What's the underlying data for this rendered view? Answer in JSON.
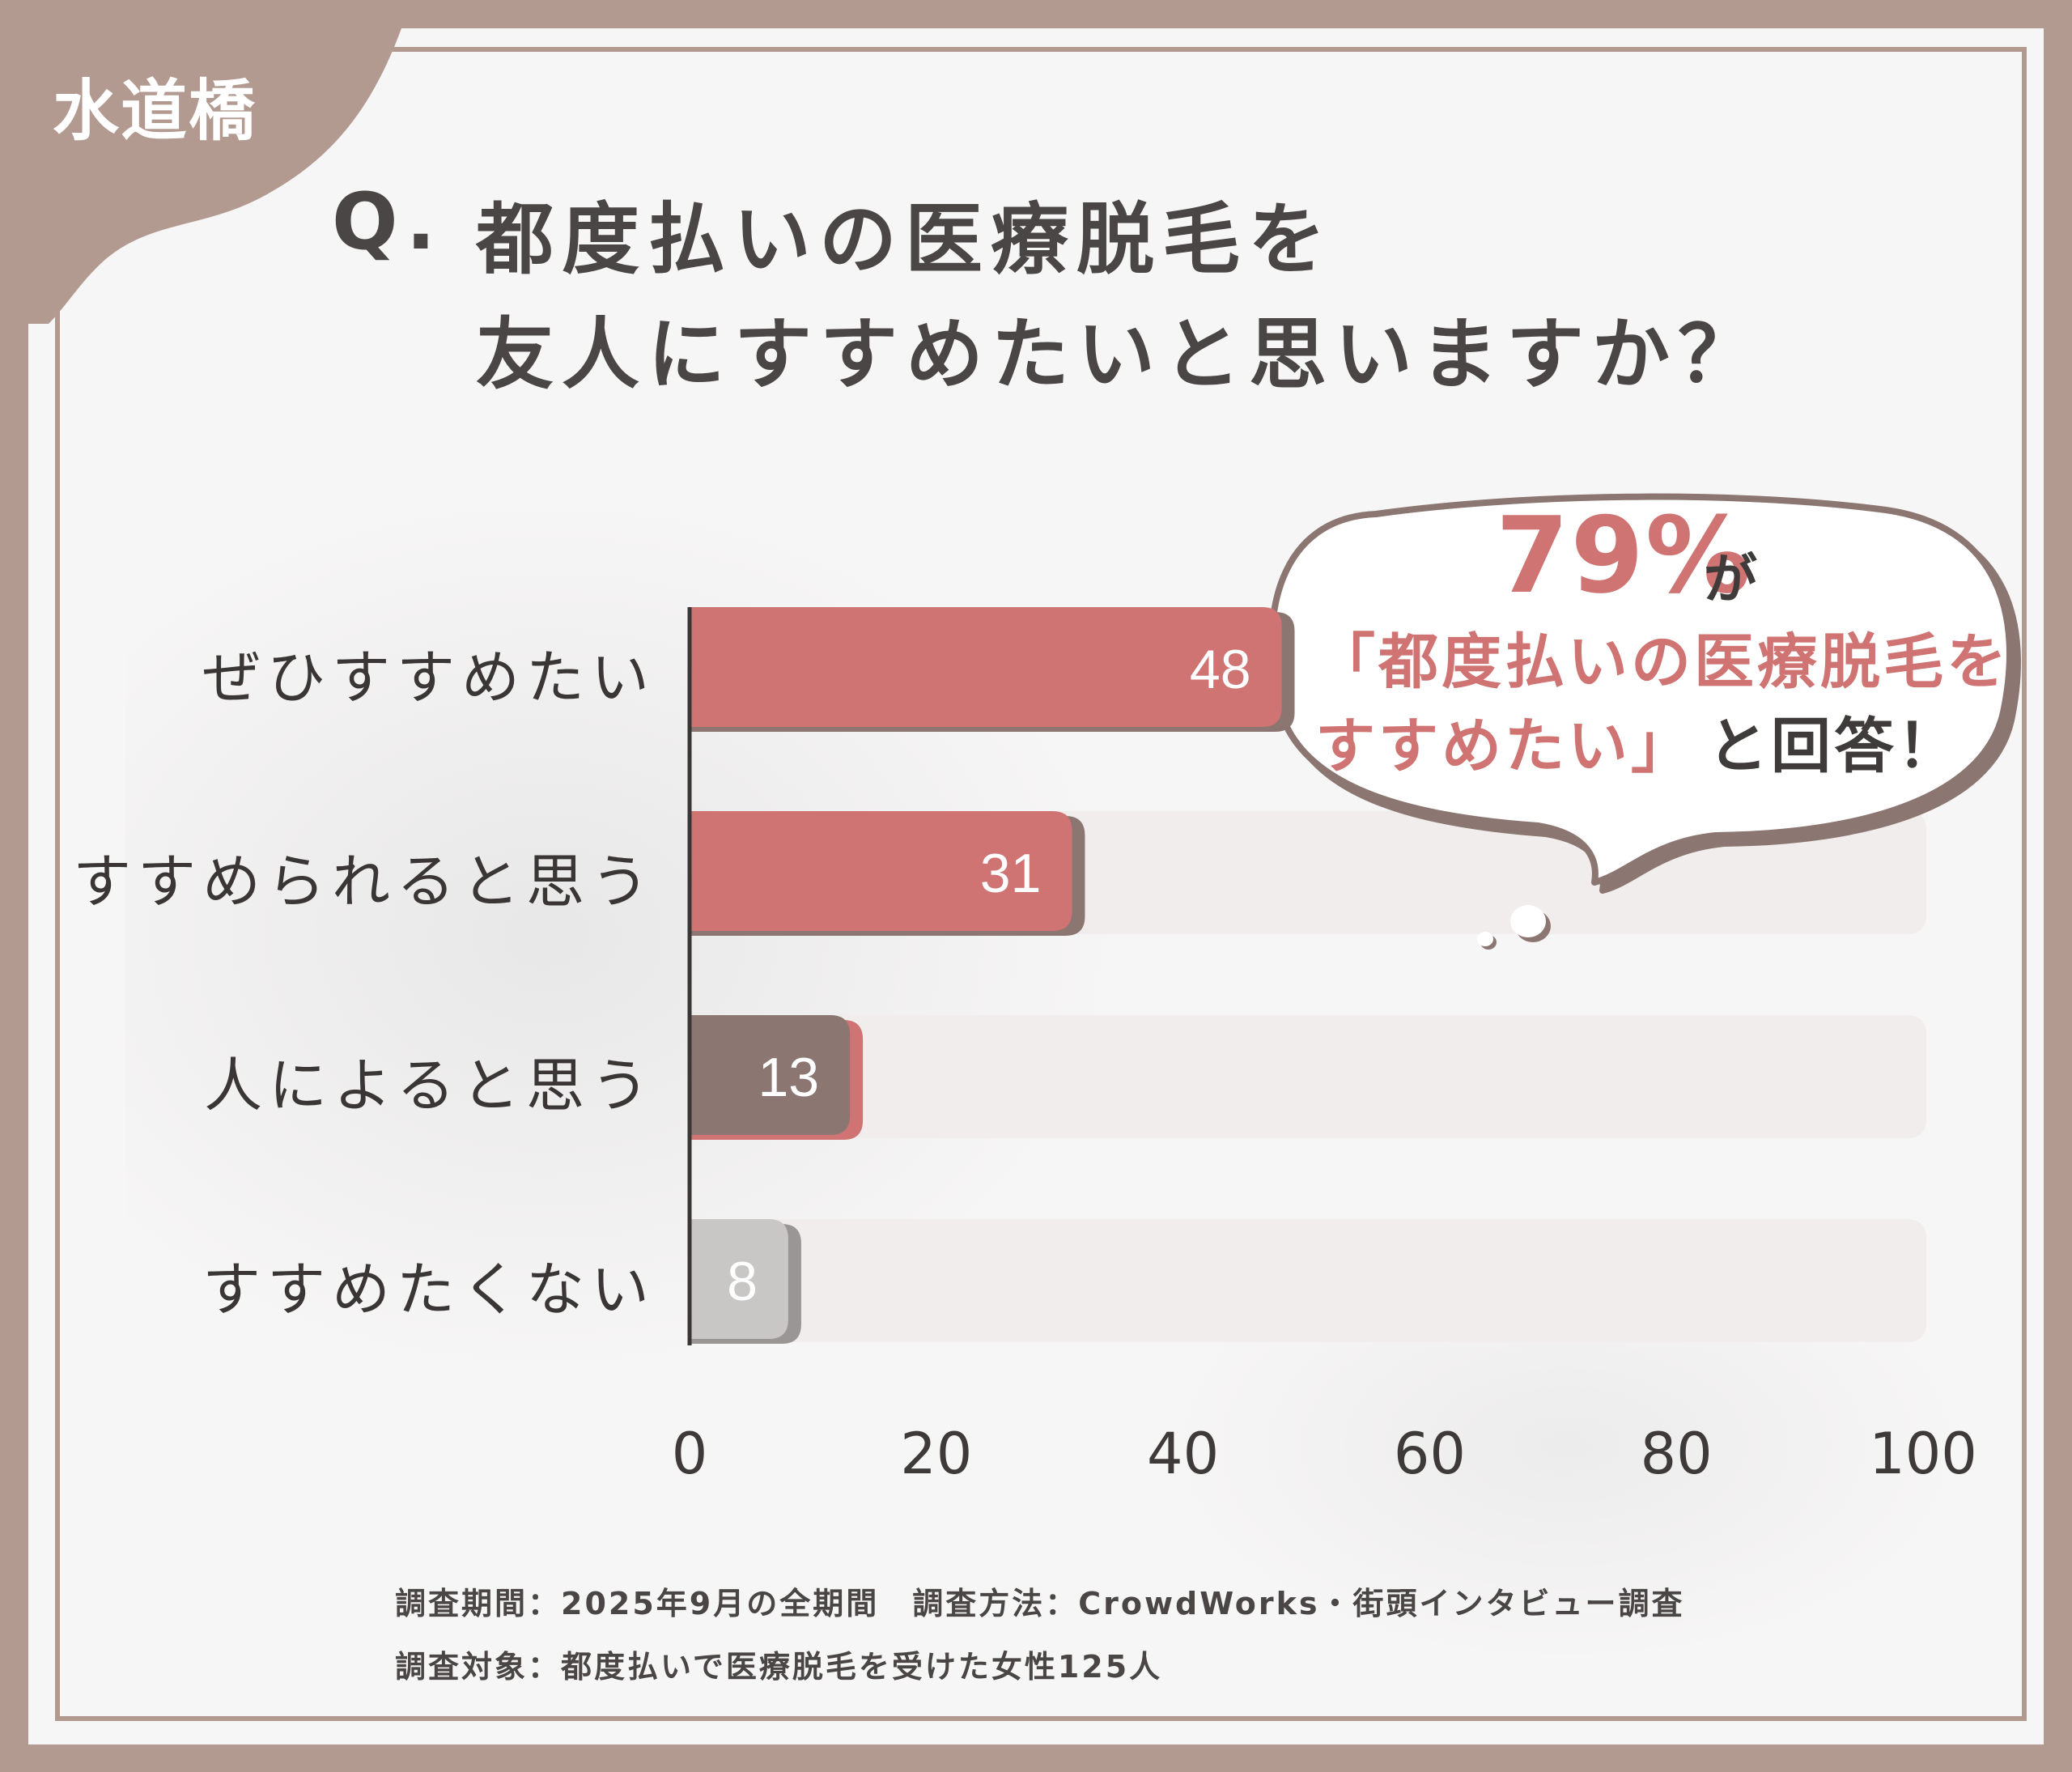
{
  "corner_label": "水道橋",
  "question": {
    "prefix": "Q.",
    "line1": "都度払いの医療脱毛を",
    "line2": "友人にすすめたいと思いますか？"
  },
  "callout": {
    "percent": "79%",
    "ga": "が",
    "line2": "「都度払いの医療脱毛を",
    "line3_quote": "すすめたい」",
    "line3_rest": "と回答！"
  },
  "footer": {
    "line1": "調査期間：2025年9月の全期間　調査方法：CrowdWorks・街頭インタビュー調査",
    "line2": "調査対象：都度払いで医療脱毛を受けた女性125人"
  },
  "colors": {
    "frame": "#b39a91",
    "bar_recommend": "#cf7472",
    "bar_depends": "#8c7671",
    "bar_no": "#c9c6c6",
    "track": "#f1eded",
    "accent_text": "#cf7472"
  },
  "chart_data": {
    "type": "bar",
    "orientation": "horizontal",
    "categories": [
      "ぜひすすめたい",
      "すすめられると思う",
      "人によると思う",
      "すすめたくない"
    ],
    "values": [
      48,
      31,
      13,
      8
    ],
    "value_labels": [
      "48",
      "31",
      "13",
      "8"
    ],
    "bar_colors": [
      "#cf7472",
      "#cf7472",
      "#8c7671",
      "#c9c6c6"
    ],
    "xlim": [
      0,
      100
    ],
    "xticks": [
      "0",
      "20",
      "40",
      "60",
      "80",
      "100"
    ],
    "xlabel": "",
    "ylabel": "",
    "grid": false,
    "legend": "none"
  }
}
